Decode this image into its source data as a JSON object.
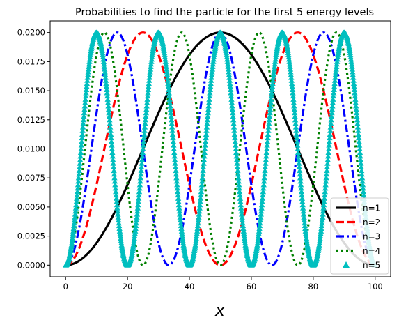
{
  "chart_data": {
    "type": "line",
    "title": "Probabilities to find the particle for the first 5 energy levels",
    "xlabel": "x",
    "ylabel": "",
    "xlim": [
      -5,
      105
    ],
    "ylim": [
      -0.001,
      0.021
    ],
    "xticks": [
      0,
      20,
      40,
      60,
      80,
      100
    ],
    "xtick_labels": [
      "0",
      "20",
      "40",
      "60",
      "80",
      "100"
    ],
    "yticks": [
      0,
      0.0025,
      0.005,
      0.0075,
      0.01,
      0.0125,
      0.015,
      0.0175,
      0.02
    ],
    "ytick_labels": [
      "0.0000",
      "0.0025",
      "0.0050",
      "0.0075",
      "0.0100",
      "0.0125",
      "0.0150",
      "0.0175",
      "0.0200"
    ],
    "grid": false,
    "legend_position": "lower-right",
    "x_domain": [
      0,
      100
    ],
    "amplitude": 0.02,
    "series": [
      {
        "name": "n=1",
        "n": 1,
        "color": "#000000",
        "style": "solid"
      },
      {
        "name": "n=2",
        "n": 2,
        "color": "#ff0000",
        "style": "dashed"
      },
      {
        "name": "n=3",
        "n": 3,
        "color": "#0000ff",
        "style": "dashdot"
      },
      {
        "name": "n=4",
        "n": 4,
        "color": "#008000",
        "style": "dotted"
      },
      {
        "name": "n=5",
        "n": 5,
        "color": "#00bfbf",
        "style": "triangle-markers"
      }
    ]
  }
}
